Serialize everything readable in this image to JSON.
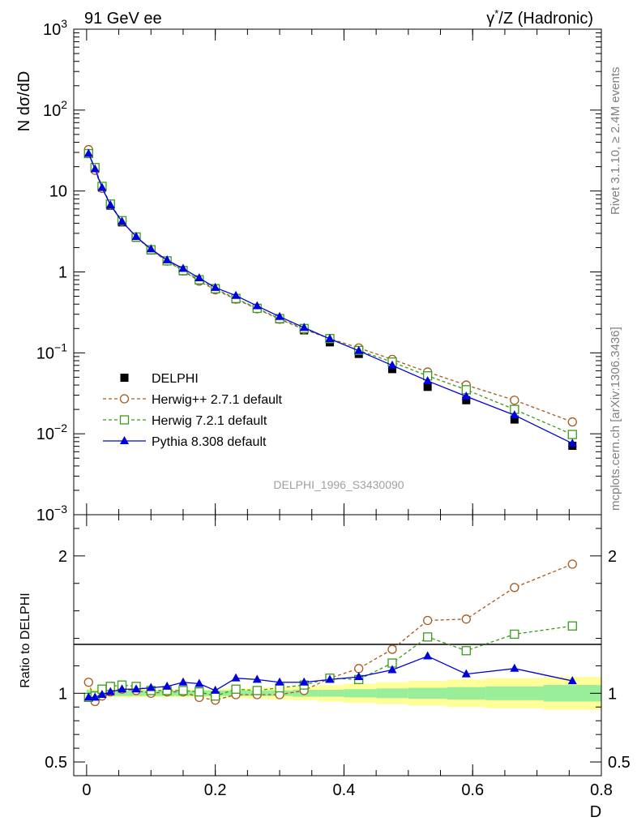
{
  "header": {
    "left": "91 GeV ee",
    "right_prefix": "γ",
    "right_sup": "*",
    "right_suffix": "/Z (Hadronic)"
  },
  "side_text": {
    "top": "Rivet 3.1.10, ≥ 2.4M events",
    "bottom": "mcplots.cern.ch [arXiv:1306.3436]"
  },
  "watermark": "DELPHI_1996_S3430090",
  "colors": {
    "data": "#000000",
    "herwigpp": "#a65a1e",
    "herwig7": "#3c9a1e",
    "pythia": "#0000dd",
    "band_inner": "#99ee99",
    "band_outer": "#ffff99"
  },
  "chart_data": [
    {
      "type": "line",
      "panel": "main",
      "ylabel": "N dσ/dD",
      "yscale": "log",
      "ylim": [
        0.001,
        1000
      ],
      "xlim": [
        -0.02,
        0.8
      ],
      "y_ticks": [
        {
          "v": 1000,
          "base": "10",
          "exp": "3"
        },
        {
          "v": 100,
          "base": "10",
          "exp": "2"
        },
        {
          "v": 10,
          "base": "10",
          "exp": ""
        },
        {
          "v": 1,
          "base": "1",
          "exp": ""
        },
        {
          "v": 0.1,
          "base": "10",
          "exp": "−1"
        },
        {
          "v": 0.01,
          "base": "10",
          "exp": "−2"
        },
        {
          "v": 0.001,
          "base": "10",
          "exp": "−3"
        }
      ],
      "x": [
        0.003,
        0.013,
        0.024,
        0.037,
        0.055,
        0.077,
        0.1,
        0.125,
        0.15,
        0.175,
        0.2,
        0.232,
        0.265,
        0.3,
        0.338,
        0.378,
        0.423,
        0.475,
        0.53,
        0.59,
        0.665,
        0.755
      ],
      "series": [
        {
          "name": "DELPHI",
          "marker": "square-filled",
          "colorKey": "data",
          "dash": "",
          "values": [
            30,
            19,
            11,
            6.6,
            4.1,
            2.65,
            1.85,
            1.35,
            1.02,
            0.79,
            0.63,
            0.46,
            0.35,
            0.26,
            0.19,
            0.135,
            0.097,
            0.063,
            0.038,
            0.026,
            0.015,
            0.0071
          ]
        },
        {
          "name": "Herwig++ 2.7.1 default",
          "marker": "circle-open",
          "colorKey": "herwigpp",
          "dash": "4,3",
          "values": [
            32.5,
            18,
            10.8,
            6.8,
            4.2,
            2.7,
            1.86,
            1.36,
            1.03,
            0.77,
            0.6,
            0.46,
            0.35,
            0.26,
            0.195,
            0.15,
            0.115,
            0.083,
            0.058,
            0.04,
            0.026,
            0.014
          ]
        },
        {
          "name": "Herwig 7.2.1 default",
          "marker": "square-open",
          "colorKey": "herwig7",
          "dash": "4,3",
          "values": [
            29,
            19.5,
            11.4,
            6.9,
            4.3,
            2.7,
            1.88,
            1.37,
            1.04,
            0.8,
            0.62,
            0.47,
            0.355,
            0.265,
            0.2,
            0.15,
            0.107,
            0.077,
            0.052,
            0.035,
            0.02,
            0.0098
          ]
        },
        {
          "name": "Pythia 8.308 default",
          "marker": "triangle-filled",
          "colorKey": "pythia",
          "dash": "",
          "values": [
            29,
            18.7,
            11,
            6.7,
            4.2,
            2.73,
            1.92,
            1.4,
            1.1,
            0.84,
            0.64,
            0.51,
            0.38,
            0.28,
            0.205,
            0.149,
            0.106,
            0.07,
            0.045,
            0.029,
            0.017,
            0.0076
          ]
        }
      ],
      "legend": "left, below middle"
    },
    {
      "type": "line",
      "panel": "ratio",
      "ylabel": "Ratio to DELPHI",
      "xlabel": "D",
      "ylim": [
        0.4,
        2.3
      ],
      "xlim": [
        -0.02,
        0.8
      ],
      "x_ticks": [
        {
          "v": 0,
          "label": "0"
        },
        {
          "v": 0.2,
          "label": "0.2"
        },
        {
          "v": 0.4,
          "label": "0.4"
        },
        {
          "v": 0.6,
          "label": "0.6"
        },
        {
          "v": 0.8,
          "label": "0.8"
        }
      ],
      "y_ticks": [
        {
          "v": 0.5,
          "label": "0.5"
        },
        {
          "v": 1,
          "label": "1"
        },
        {
          "v": 2,
          "label": "2"
        }
      ],
      "band_edges": [
        0,
        0.007,
        0.018,
        0.03,
        0.045,
        0.065,
        0.09,
        0.11,
        0.14,
        0.16,
        0.19,
        0.21,
        0.25,
        0.28,
        0.32,
        0.36,
        0.4,
        0.45,
        0.5,
        0.56,
        0.62,
        0.71,
        0.8
      ],
      "band_inner": [
        0.025,
        0.02,
        0.02,
        0.02,
        0.02,
        0.02,
        0.02,
        0.02,
        0.02,
        0.02,
        0.02,
        0.02,
        0.02,
        0.02,
        0.025,
        0.025,
        0.03,
        0.035,
        0.04,
        0.045,
        0.05,
        0.06
      ],
      "band_outer": [
        0.035,
        0.03,
        0.03,
        0.03,
        0.03,
        0.03,
        0.03,
        0.03,
        0.03,
        0.03,
        0.035,
        0.035,
        0.04,
        0.045,
        0.05,
        0.06,
        0.07,
        0.08,
        0.09,
        0.1,
        0.11,
        0.12
      ],
      "x": [
        0.003,
        0.013,
        0.024,
        0.037,
        0.055,
        0.077,
        0.1,
        0.125,
        0.15,
        0.175,
        0.2,
        0.232,
        0.265,
        0.3,
        0.338,
        0.378,
        0.423,
        0.475,
        0.53,
        0.59,
        0.665,
        0.755
      ],
      "series": [
        {
          "name": "Herwig++ 2.7.1 default",
          "marker": "circle-open",
          "colorKey": "herwigpp",
          "dash": "4,3",
          "values": [
            1.08,
            0.94,
            0.98,
            1.01,
            1.03,
            1.02,
            1.0,
            1.01,
            1.01,
            0.97,
            0.95,
            0.99,
            0.99,
            0.99,
            1.02,
            1.11,
            1.18,
            1.32,
            1.53,
            1.54,
            1.77,
            1.94
          ]
        },
        {
          "name": "Herwig 7.2.1 default",
          "marker": "square-open",
          "colorKey": "herwig7",
          "dash": "4,3",
          "values": [
            0.97,
            0.98,
            1.03,
            1.05,
            1.06,
            1.05,
            1.02,
            1.02,
            1.02,
            1.01,
            0.98,
            1.03,
            1.02,
            1.04,
            1.06,
            1.11,
            1.1,
            1.22,
            1.41,
            1.31,
            1.43,
            1.49
          ]
        },
        {
          "name": "Pythia 8.308 default",
          "marker": "triangle-filled",
          "colorKey": "pythia",
          "dash": "",
          "values": [
            0.97,
            0.97,
            0.99,
            1.01,
            1.03,
            1.03,
            1.04,
            1.05,
            1.08,
            1.07,
            1.02,
            1.11,
            1.1,
            1.08,
            1.08,
            1.1,
            1.12,
            1.17,
            1.27,
            1.14,
            1.18,
            1.09
          ]
        }
      ]
    }
  ]
}
